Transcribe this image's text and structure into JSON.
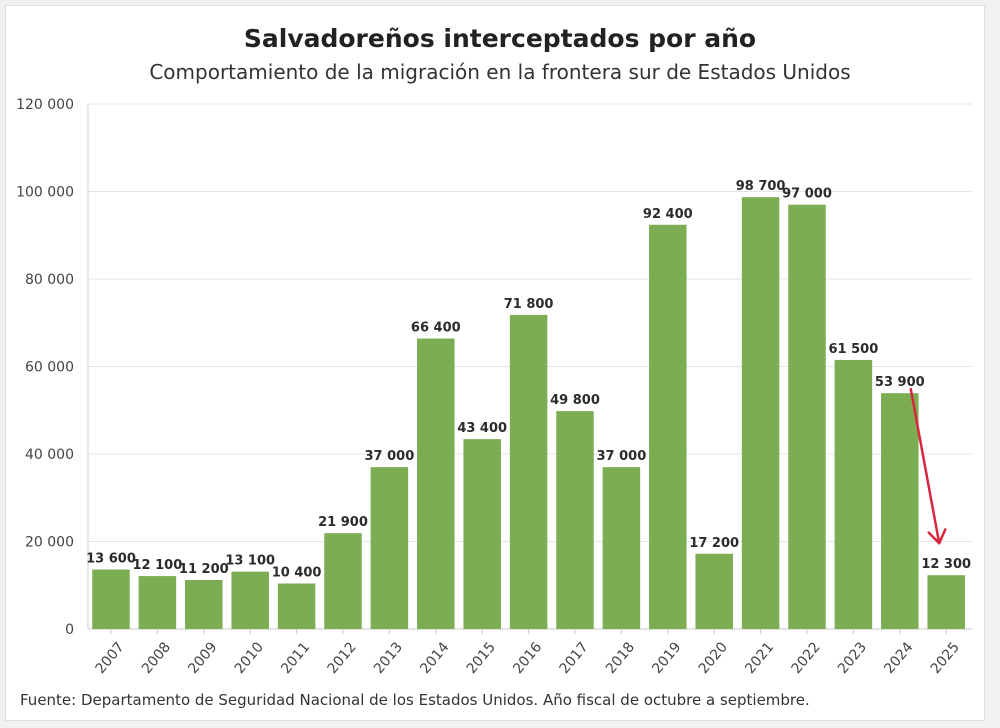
{
  "chart_data": {
    "type": "bar",
    "title": "Salvadoreños interceptados por año",
    "subtitle": "Comportamiento de la migración en la frontera sur de Estados Unidos",
    "categories": [
      "2007",
      "2008",
      "2009",
      "2010",
      "2011",
      "2012",
      "2013",
      "2014",
      "2015",
      "2016",
      "2017",
      "2018",
      "2019",
      "2020",
      "2021",
      "2022",
      "2023",
      "2024",
      "2025"
    ],
    "values": [
      13600,
      12100,
      11200,
      13100,
      10400,
      21900,
      37000,
      66400,
      43400,
      71800,
      49800,
      37000,
      92400,
      17200,
      98700,
      97000,
      61500,
      53900,
      12300
    ],
    "value_labels": [
      "13 600",
      "12 100",
      "11 200",
      "13 100",
      "10 400",
      "21 900",
      "37 000",
      "66 400",
      "43 400",
      "71 800",
      "49 800",
      "37 000",
      "92 400",
      "17 200",
      "98 700",
      "97 000",
      "61 500",
      "53 900",
      "12 300"
    ],
    "yticks": [
      0,
      20000,
      40000,
      60000,
      80000,
      100000,
      120000
    ],
    "ytick_labels": [
      "0",
      "20 000",
      "40 000",
      "60 000",
      "80 000",
      "100 000",
      "120 000"
    ],
    "ylim": [
      0,
      120000
    ],
    "xlabel": "",
    "ylabel": "",
    "grid": true,
    "bar_color": "#7dad53",
    "annotation": {
      "type": "arrow",
      "from_category": "2024",
      "to_category": "2025",
      "color": "#d7263d"
    },
    "source": "Fuente: Departamento de Seguridad Nacional de los Estados Unidos. Año fiscal de octubre a septiembre."
  }
}
